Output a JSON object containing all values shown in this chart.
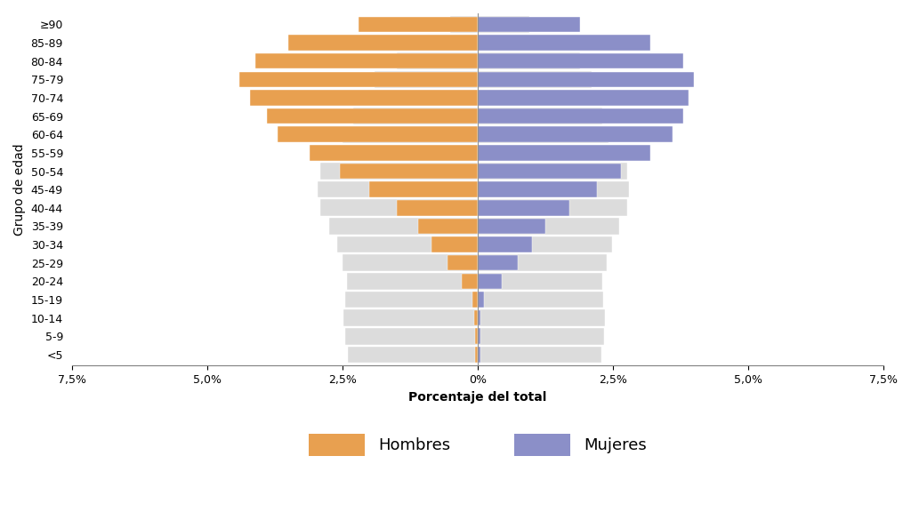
{
  "age_groups": [
    "<5",
    "5-9",
    "10-14",
    "15-19",
    "20-24",
    "25-29",
    "30-34",
    "35-39",
    "40-44",
    "45-49",
    "50-54",
    "55-59",
    "60-64",
    "65-69",
    "70-74",
    "75-79",
    "80-84",
    "85-89",
    "≥90"
  ],
  "hombres_covid": [
    0.05,
    0.05,
    0.06,
    0.1,
    0.3,
    0.55,
    0.85,
    1.1,
    1.5,
    2.0,
    2.55,
    3.1,
    3.7,
    3.9,
    4.2,
    4.4,
    4.1,
    3.5,
    2.2
  ],
  "mujeres_covid": [
    0.05,
    0.05,
    0.06,
    0.12,
    0.45,
    0.75,
    1.0,
    1.25,
    1.7,
    2.2,
    2.65,
    3.2,
    3.6,
    3.8,
    3.9,
    4.0,
    3.8,
    3.2,
    1.9
  ],
  "hombres_pop": [
    2.4,
    2.45,
    2.48,
    2.45,
    2.42,
    2.5,
    2.6,
    2.75,
    2.9,
    2.95,
    2.9,
    2.7,
    2.5,
    2.3,
    2.1,
    1.9,
    1.5,
    0.95,
    0.5
  ],
  "mujeres_pop": [
    2.28,
    2.33,
    2.35,
    2.32,
    2.3,
    2.38,
    2.48,
    2.62,
    2.76,
    2.8,
    2.76,
    2.58,
    2.42,
    2.3,
    2.18,
    2.1,
    1.9,
    1.4,
    0.95
  ],
  "color_hombres": "#E8A050",
  "color_mujeres": "#8B8FC8",
  "color_pop": "#DCDCDC",
  "xlim": 7.5,
  "xlabel": "Porcentaje del total",
  "ylabel": "Grupo de edad",
  "legend_hombres": "Hombres",
  "legend_mujeres": "Mujeres",
  "bg_color": "#FFFFFF",
  "bar_height": 0.85
}
